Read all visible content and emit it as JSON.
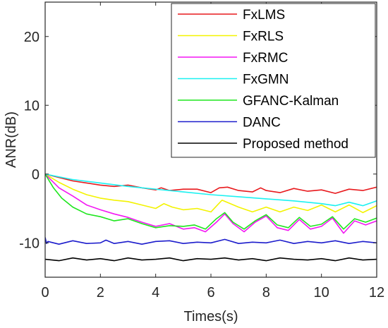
{
  "chart_data": {
    "type": "line",
    "xlabel": "Times(s)",
    "ylabel": "ANR(dB)",
    "xlim": [
      0,
      12
    ],
    "ylim": [
      -15,
      25
    ],
    "xticks": [
      0,
      2,
      4,
      6,
      8,
      10,
      12
    ],
    "yticks": [
      -10,
      0,
      10,
      20
    ],
    "grid": false,
    "legend_position": "top-right",
    "series": [
      {
        "name": "FxLMS",
        "color": "#e8191d",
        "x": [
          0,
          0.5,
          1,
          1.5,
          2,
          2.5,
          3,
          3.5,
          4,
          4.2,
          4.5,
          5,
          5.5,
          6,
          6.3,
          6.6,
          7,
          7.5,
          7.8,
          8,
          8.5,
          9,
          9.5,
          10,
          10.5,
          11,
          11.5,
          12
        ],
        "y": [
          0,
          -0.5,
          -1.0,
          -1.3,
          -1.6,
          -1.8,
          -1.6,
          -2.0,
          -2.3,
          -2.0,
          -2.4,
          -2.2,
          -2.2,
          -2.7,
          -2.0,
          -1.9,
          -2.4,
          -2.6,
          -2.0,
          -2.4,
          -2.7,
          -2.1,
          -2.5,
          -2.3,
          -2.8,
          -2.2,
          -2.4,
          -1.9
        ]
      },
      {
        "name": "FxRLS",
        "color": "#f3f300",
        "x": [
          0,
          0.5,
          1,
          1.5,
          2,
          2.5,
          3,
          3.5,
          4,
          4.3,
          4.6,
          5,
          5.5,
          6,
          6.4,
          7,
          7.5,
          8,
          8.5,
          9,
          9.5,
          10,
          10.5,
          11,
          11.5,
          12
        ],
        "y": [
          0,
          -1.2,
          -2.2,
          -3.0,
          -3.5,
          -3.8,
          -4.0,
          -4.5,
          -5.0,
          -4.3,
          -4.8,
          -5.2,
          -5.0,
          -5.5,
          -3.8,
          -4.8,
          -5.5,
          -4.8,
          -5.5,
          -4.8,
          -5.3,
          -4.5,
          -5.5,
          -4.5,
          -5.6,
          -4.6
        ]
      },
      {
        "name": "FxRMC",
        "color": "#f316f3",
        "x": [
          0,
          0.5,
          1,
          1.5,
          2,
          2.5,
          3,
          3.5,
          4,
          4.5,
          5,
          5.4,
          5.8,
          6.2,
          6.5,
          6.8,
          7.2,
          7.6,
          8,
          8.4,
          8.8,
          9.2,
          9.6,
          10,
          10.4,
          10.8,
          11.2,
          11.6,
          12
        ],
        "y": [
          0,
          -2.0,
          -3.2,
          -4.5,
          -5.2,
          -5.8,
          -6.3,
          -7.0,
          -7.6,
          -7.2,
          -8.0,
          -7.8,
          -8.4,
          -7.0,
          -5.8,
          -7.2,
          -8.4,
          -7.0,
          -6.1,
          -7.8,
          -8.2,
          -6.6,
          -8.0,
          -7.6,
          -6.4,
          -8.6,
          -6.8,
          -7.4,
          -6.8
        ]
      },
      {
        "name": "FxGMN",
        "color": "#1cf1f1",
        "x": [
          0,
          1,
          2,
          3,
          4,
          5,
          6,
          7,
          8,
          9,
          10,
          10.5,
          11,
          11.5,
          12
        ],
        "y": [
          0,
          -0.8,
          -1.3,
          -1.8,
          -2.2,
          -2.6,
          -3.0,
          -3.3,
          -3.6,
          -3.9,
          -4.3,
          -4.6,
          -4.1,
          -4.6,
          -3.9
        ]
      },
      {
        "name": "GFANC-Kalman",
        "color": "#1ee61e",
        "x": [
          0,
          0.3,
          0.6,
          1,
          1.5,
          2,
          2.5,
          3,
          3.5,
          4,
          4.5,
          5,
          5.4,
          5.8,
          6.2,
          6.5,
          6.8,
          7.2,
          7.6,
          8,
          8.4,
          8.8,
          9.2,
          9.6,
          10,
          10.4,
          10.8,
          11.2,
          11.6,
          12
        ],
        "y": [
          0,
          -2.0,
          -3.5,
          -4.8,
          -5.8,
          -6.2,
          -6.8,
          -6.5,
          -7.2,
          -7.8,
          -7.5,
          -7.6,
          -7.4,
          -8.0,
          -6.5,
          -5.6,
          -7.0,
          -8.0,
          -6.8,
          -5.9,
          -7.4,
          -7.8,
          -6.3,
          -7.6,
          -7.3,
          -6.2,
          -8.0,
          -6.5,
          -7.0,
          -6.4
        ]
      },
      {
        "name": "DANC",
        "color": "#1c1ccc",
        "x": [
          0,
          0.05,
          0.1,
          0.5,
          1,
          1.5,
          2,
          2.2,
          2.5,
          3,
          3.5,
          4,
          4.5,
          5,
          5.5,
          6,
          6.5,
          7,
          7.5,
          8,
          8.5,
          9,
          9.5,
          10,
          10.5,
          11,
          11.5,
          12
        ],
        "y": [
          -9.2,
          -10.1,
          -9.8,
          -10.2,
          -9.7,
          -10.1,
          -10.0,
          -9.6,
          -10.1,
          -9.8,
          -10.2,
          -9.8,
          -9.7,
          -10.1,
          -9.9,
          -10.0,
          -9.5,
          -10.1,
          -9.9,
          -10.0,
          -9.6,
          -10.1,
          -9.8,
          -10.0,
          -9.7,
          -10.1,
          -9.8,
          -10.0
        ]
      },
      {
        "name": "Proposed method",
        "color": "#000000",
        "x": [
          0,
          0.5,
          1,
          1.5,
          2,
          2.5,
          3,
          3.5,
          4,
          4.5,
          5,
          5.5,
          6,
          6.5,
          7,
          7.5,
          8,
          8.5,
          9,
          9.5,
          10,
          10.5,
          11,
          11.5,
          12
        ],
        "y": [
          -12.4,
          -12.6,
          -12.2,
          -12.5,
          -12.3,
          -12.6,
          -12.2,
          -12.5,
          -12.4,
          -12.2,
          -12.6,
          -12.3,
          -12.4,
          -12.2,
          -12.5,
          -12.3,
          -12.6,
          -12.2,
          -12.4,
          -12.5,
          -12.3,
          -12.6,
          -12.2,
          -12.5,
          -12.4
        ]
      }
    ]
  }
}
